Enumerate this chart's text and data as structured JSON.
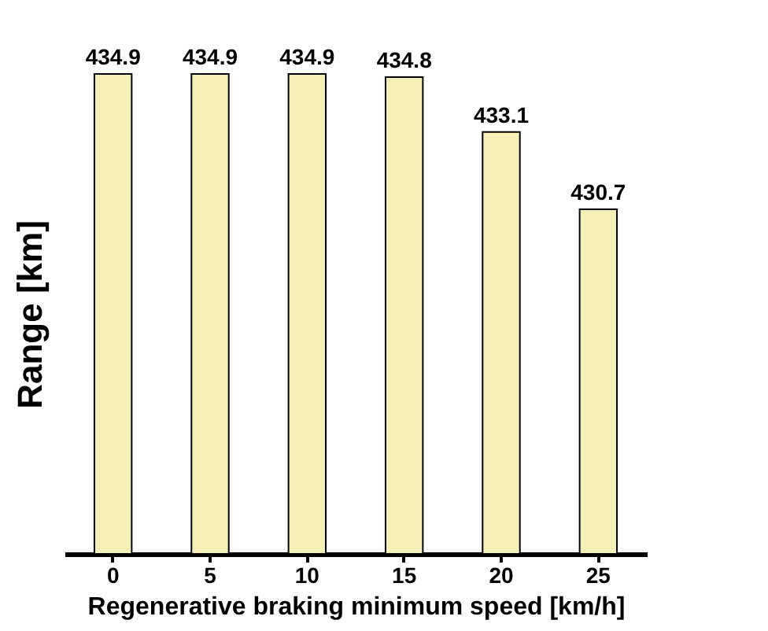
{
  "chart_data": {
    "type": "bar",
    "xlabel": "Regenerative braking minimum speed [km/h]",
    "ylabel": "Range [km]",
    "categories": [
      "0",
      "5",
      "10",
      "15",
      "20",
      "25"
    ],
    "values": [
      434.9,
      434.9,
      434.9,
      434.8,
      433.1,
      430.7
    ],
    "color": "#f5f0b8",
    "ylim": [
      420,
      434.9
    ],
    "data_labels": true,
    "tick_labels": "x"
  }
}
